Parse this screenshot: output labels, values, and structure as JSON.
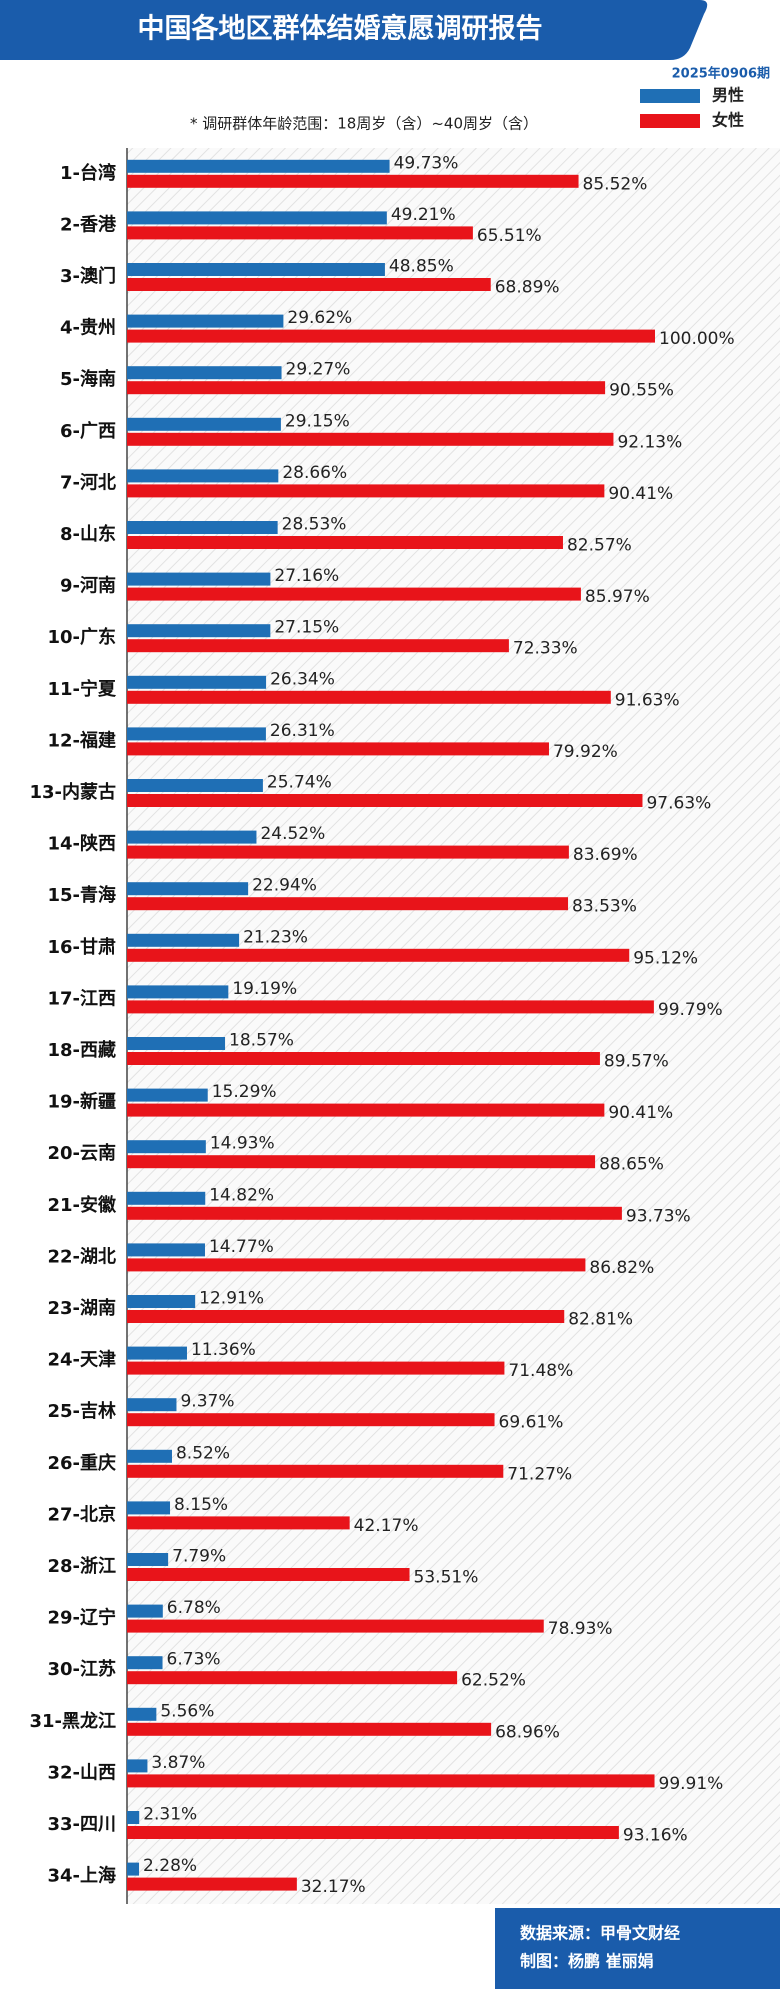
{
  "chart_data": {
    "type": "hbar",
    "title": "中国各地区群体结婚意愿调研报告",
    "subtitle": "2025年0906期",
    "note": "* 调研群体年龄范围：18周岁（含）~40周岁（含）",
    "source": "数据来源：甲骨文财经",
    "credit": "制图：杨鹏 崔丽娟",
    "xlim": [
      0,
      100
    ],
    "legend": "top-right",
    "categories": [
      "1-台湾",
      "2-香港",
      "3-澳门",
      "4-贵州",
      "5-海南",
      "6-广西",
      "7-河北",
      "8-山东",
      "9-河南",
      "10-广东",
      "11-宁夏",
      "12-福建",
      "13-内蒙古",
      "14-陕西",
      "15-青海",
      "16-甘肃",
      "17-江西",
      "18-西藏",
      "19-新疆",
      "20-云南",
      "21-安徽",
      "22-湖北",
      "23-湖南",
      "24-天津",
      "25-吉林",
      "26-重庆",
      "27-北京",
      "28-浙江",
      "29-辽宁",
      "30-江苏",
      "31-黑龙江",
      "32-山西",
      "33-四川",
      "34-上海"
    ],
    "series": [
      {
        "name": "男性",
        "color": "#1f6fb5",
        "values": [
          49.73,
          49.21,
          48.85,
          29.62,
          29.27,
          29.15,
          28.66,
          28.53,
          27.16,
          27.15,
          26.34,
          26.31,
          25.74,
          24.52,
          22.94,
          21.23,
          19.19,
          18.57,
          15.29,
          14.93,
          14.82,
          14.77,
          12.91,
          11.36,
          9.37,
          8.52,
          8.15,
          7.79,
          6.78,
          6.73,
          5.56,
          3.87,
          2.31,
          2.28
        ],
        "value_labels": [
          "49.73%",
          "49.21%",
          "48.85%",
          "29.62%",
          "29.27%",
          "29.15%",
          "28.66%",
          "28.53%",
          "27.16%",
          "27.15%",
          "26.34%",
          "26.31%",
          "25.74%",
          "24.52%",
          "22.94%",
          "21.23%",
          "19.19%",
          "18.57%",
          "15.29%",
          "14.93%",
          "14.82%",
          "14.77%",
          "12.91%",
          "11.36%",
          "9.37%",
          "8.52%",
          "8.15%",
          "7.79%",
          "6.78%",
          "6.73%",
          "5.56%",
          "3.87%",
          "2.31%",
          "2.28%"
        ]
      },
      {
        "name": "女性",
        "color": "#e8141a",
        "values": [
          85.52,
          65.51,
          68.89,
          100.0,
          90.55,
          92.13,
          90.41,
          82.57,
          85.97,
          72.33,
          91.63,
          79.92,
          97.63,
          83.69,
          83.53,
          95.12,
          99.79,
          89.57,
          90.41,
          88.65,
          93.73,
          86.82,
          82.81,
          71.48,
          69.61,
          71.27,
          42.17,
          53.51,
          78.93,
          62.52,
          68.96,
          99.91,
          93.16,
          32.17
        ],
        "value_labels": [
          "85.52%",
          "65.51%",
          "68.89%",
          "100.00%",
          "90.55%",
          "92.13%",
          "90.41%",
          "82.57%",
          "85.97%",
          "72.33%",
          "91.63%",
          "79.92%",
          "97.63%",
          "83.69%",
          "83.53%",
          "95.12%",
          "99.79%",
          "89.57%",
          "90.41%",
          "88.65%",
          "93.73%",
          "86.82%",
          "82.81%",
          "71.48%",
          "69.61%",
          "71.27%",
          "42.17%",
          "53.51%",
          "78.93%",
          "62.52%",
          "68.96%",
          "99.91%",
          "93.16%",
          "32.17%"
        ]
      }
    ]
  }
}
